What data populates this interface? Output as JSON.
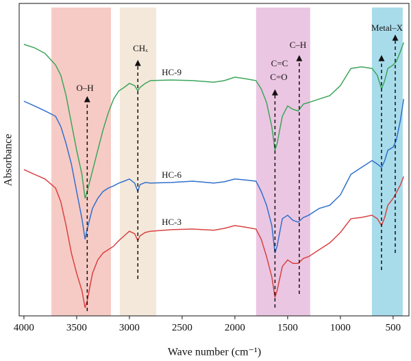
{
  "chart_data": {
    "type": "line",
    "x_label": "Wave number (cm⁻¹)",
    "y_label": "Absorbance",
    "xlim": [
      4045,
      350
    ],
    "ylim": [
      0,
      100
    ],
    "xticks": [
      4000,
      3500,
      3000,
      2500,
      2000,
      1500,
      1000,
      500
    ],
    "x": [
      4000,
      3900,
      3800,
      3700,
      3650,
      3600,
      3550,
      3500,
      3450,
      3420,
      3400,
      3350,
      3300,
      3250,
      3200,
      3150,
      3100,
      3050,
      3000,
      2950,
      2920,
      2900,
      2850,
      2800,
      2600,
      2400,
      2200,
      2100,
      2000,
      1900,
      1800,
      1750,
      1700,
      1650,
      1620,
      1600,
      1550,
      1500,
      1450,
      1400,
      1350,
      1300,
      1200,
      1100,
      1000,
      900,
      800,
      700,
      650,
      610,
      580,
      550,
      500,
      470,
      430,
      400
    ],
    "series": [
      {
        "name": "HC-9",
        "color": "#3aa55a",
        "values": [
          86.9,
          85.8,
          84.0,
          80.3,
          77.0,
          70.5,
          61.7,
          53.0,
          45.3,
          37.6,
          39.8,
          46.4,
          53.0,
          59.5,
          65.0,
          69.4,
          72.0,
          73.1,
          74.4,
          73.7,
          72.0,
          73.1,
          74.4,
          75.3,
          75.5,
          75.3,
          74.8,
          75.3,
          76.4,
          75.9,
          75.3,
          72.6,
          68.3,
          60.6,
          53.0,
          55.1,
          63.9,
          67.2,
          66.1,
          65.6,
          67.8,
          68.3,
          69.4,
          70.5,
          73.7,
          79.2,
          79.7,
          79.2,
          77.0,
          72.6,
          75.3,
          79.2,
          80.3,
          81.4,
          84.7,
          87.5
        ]
      },
      {
        "name": "HC-6",
        "color": "#2f6fcc",
        "values": [
          68.7,
          67.2,
          65.6,
          63.9,
          60.6,
          55.1,
          48.6,
          39.8,
          31.1,
          24.5,
          27.8,
          34.4,
          37.6,
          39.8,
          40.9,
          41.6,
          42.5,
          43.1,
          43.8,
          42.5,
          39.8,
          42.0,
          42.7,
          42.5,
          42.7,
          43.1,
          42.5,
          42.9,
          43.8,
          43.5,
          43.1,
          39.8,
          35.4,
          28.9,
          20.1,
          22.3,
          31.1,
          32.2,
          30.6,
          30.0,
          31.5,
          32.2,
          34.4,
          35.4,
          38.7,
          45.3,
          47.5,
          49.7,
          48.6,
          47.5,
          49.7,
          53.0,
          54.0,
          56.2,
          62.8,
          69.4
        ]
      },
      {
        "name": "HC-3",
        "color": "#d94040",
        "values": [
          46.8,
          45.3,
          43.8,
          40.9,
          36.5,
          28.9,
          20.1,
          13.6,
          8.1,
          2.6,
          4.8,
          13.6,
          17.9,
          20.1,
          21.2,
          22.3,
          24.1,
          25.6,
          27.1,
          26.3,
          24.1,
          25.6,
          26.7,
          27.1,
          27.6,
          27.8,
          27.4,
          28.0,
          28.9,
          28.4,
          27.8,
          24.5,
          19.0,
          12.5,
          5.9,
          8.1,
          15.8,
          17.9,
          16.8,
          16.8,
          18.4,
          19.0,
          21.2,
          23.4,
          26.7,
          31.1,
          31.5,
          32.2,
          31.1,
          28.9,
          31.5,
          35.4,
          37.6,
          39.4,
          42.0,
          44.6
        ]
      }
    ],
    "bands": [
      {
        "range": [
          3740,
          3175
        ],
        "color": "#f6cbc5"
      },
      {
        "range": [
          3091,
          2747
        ],
        "color": "#f4e8da"
      },
      {
        "range": [
          1799,
          1286
        ],
        "color": "#ebc6e2"
      },
      {
        "range": [
          701,
          409
        ],
        "color": "#a8dceb"
      }
    ],
    "markers": [
      3400,
      2920,
      1620,
      1390,
      610,
      480
    ],
    "annotations": [
      "O–H",
      "CHₓ",
      "C=O",
      "C=C",
      "C–H",
      "Metal–X"
    ]
  }
}
